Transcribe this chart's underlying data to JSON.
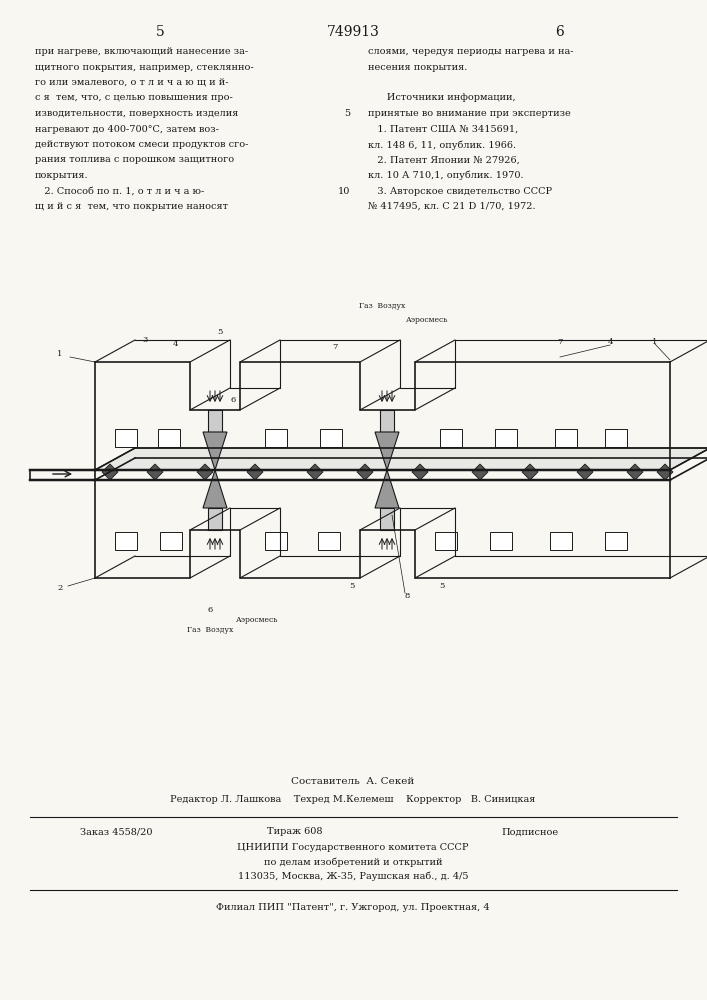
{
  "page_number_left": "5",
  "page_number_center": "749913",
  "page_number_right": "6",
  "left_column_text": [
    "при нагреве, включающий нанесение за-",
    "щитного покрытия, например, стеклянно-",
    "го или эмалевого, о т л и ч а ю щ и й-",
    "с я  тем, что, с целью повышения про-",
    "изводительности, поверхность изделия",
    "нагревают до 400-700°С, затем воз-",
    "действуют потоком смеси продуктов сго-",
    "рания топлива с порошком защитного",
    "покрытия.",
    "   2. Способ по п. 1, о т л и ч а ю-",
    "щ и й с я  тем, что покрытие наносят"
  ],
  "right_column_text": [
    "слоями, чередуя периоды нагрева и на-",
    "несения покрытия.",
    "",
    "      Источники информации,",
    "принятые во внимание при экспертизе",
    "   1. Патент США № 3415691,",
    "кл. 148 6, 11, опублик. 1966.",
    "   2. Патент Японии № 27926,",
    "кл. 10 А 710,1, опублик. 1970.",
    "   3. Авторское свидетельство СССР",
    "№ 417495, кл. С 21 D 1/70, 1972."
  ],
  "right_column_line_numbers": [
    null,
    null,
    null,
    null,
    "5",
    null,
    null,
    null,
    null,
    "10",
    null
  ],
  "footer_composer": "Составитель  А. Секей",
  "footer_editor_line": "Редактор Л. Лашкова    Техред М.Келемеш    Корректор   В. Синицкая",
  "footer_order": "Заказ 4558/20",
  "footer_tirazh": "Тираж 608",
  "footer_podp": "Подписное",
  "footer_org1": "ЦНИИПИ Государственного комитета СССР",
  "footer_org2": "по делам изобретений и открытий",
  "footer_addr": "113035, Москва, Ж-35, Раушская наб., д. 4/5",
  "footer_filial": "Филиал ПИП \"Патент\", г. Ужгород, ул. Проектная, 4",
  "bg_color": "#f8f7f2",
  "text_color": "#1a1a1a"
}
